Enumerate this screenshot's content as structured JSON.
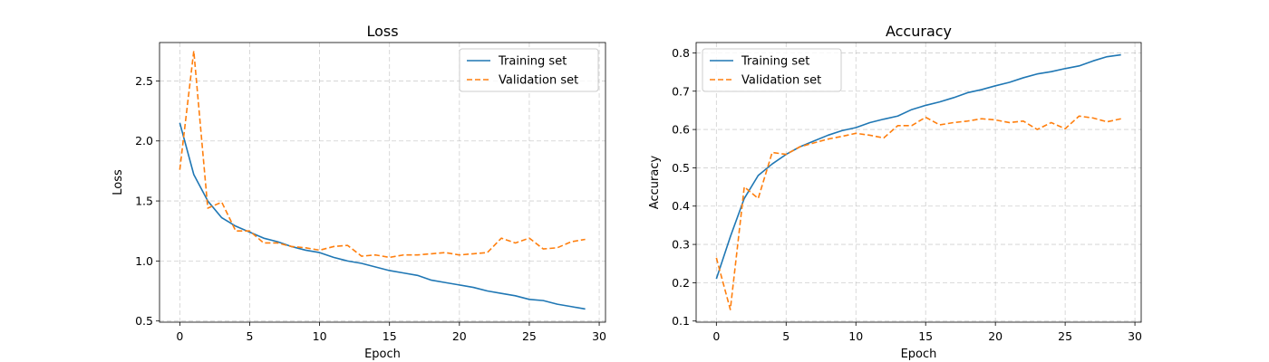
{
  "chart_data": [
    {
      "type": "line",
      "title": "Loss",
      "xlabel": "Epoch",
      "ylabel": "Loss",
      "xlim": [
        -1.45,
        30.45
      ],
      "ylim": [
        0.49,
        2.82
      ],
      "xticks": [
        0,
        5,
        10,
        15,
        20,
        25,
        30
      ],
      "yticks": [
        0.5,
        1.0,
        1.5,
        2.0,
        2.5
      ],
      "ytick_decimals": 1,
      "grid": true,
      "legend": "top-right",
      "x": [
        0,
        1,
        2,
        3,
        4,
        5,
        6,
        7,
        8,
        9,
        10,
        11,
        12,
        13,
        14,
        15,
        16,
        17,
        18,
        19,
        20,
        21,
        22,
        23,
        24,
        25,
        26,
        27,
        28,
        29
      ],
      "series": [
        {
          "name": "Training set",
          "color": "#1f77b4",
          "dash": "solid",
          "values": [
            2.15,
            1.72,
            1.5,
            1.36,
            1.29,
            1.24,
            1.19,
            1.16,
            1.12,
            1.09,
            1.07,
            1.03,
            1.0,
            0.98,
            0.95,
            0.92,
            0.9,
            0.88,
            0.84,
            0.82,
            0.8,
            0.78,
            0.75,
            0.73,
            0.71,
            0.68,
            0.67,
            0.64,
            0.62,
            0.6
          ]
        },
        {
          "name": "Validation set",
          "color": "#ff7f0e",
          "dash": "dashed",
          "values": [
            1.76,
            2.75,
            1.44,
            1.49,
            1.25,
            1.25,
            1.15,
            1.15,
            1.12,
            1.11,
            1.09,
            1.12,
            1.13,
            1.04,
            1.05,
            1.03,
            1.05,
            1.05,
            1.06,
            1.07,
            1.05,
            1.06,
            1.07,
            1.19,
            1.15,
            1.19,
            1.1,
            1.11,
            1.16,
            1.18
          ]
        }
      ]
    },
    {
      "type": "line",
      "title": "Accuracy",
      "xlabel": "Epoch",
      "ylabel": "Accuracy",
      "xlim": [
        -1.45,
        30.45
      ],
      "ylim": [
        0.097,
        0.827
      ],
      "xticks": [
        0,
        5,
        10,
        15,
        20,
        25,
        30
      ],
      "yticks": [
        0.1,
        0.2,
        0.3,
        0.4,
        0.5,
        0.6,
        0.7,
        0.8
      ],
      "ytick_decimals": 1,
      "grid": true,
      "legend": "top-left",
      "x": [
        0,
        1,
        2,
        3,
        4,
        5,
        6,
        7,
        8,
        9,
        10,
        11,
        12,
        13,
        14,
        15,
        16,
        17,
        18,
        19,
        20,
        21,
        22,
        23,
        24,
        25,
        26,
        27,
        28,
        29
      ],
      "series": [
        {
          "name": "Training set",
          "color": "#1f77b4",
          "dash": "solid",
          "values": [
            0.21,
            0.32,
            0.42,
            0.48,
            0.51,
            0.535,
            0.555,
            0.57,
            0.585,
            0.597,
            0.605,
            0.618,
            0.627,
            0.635,
            0.652,
            0.663,
            0.672,
            0.683,
            0.696,
            0.704,
            0.714,
            0.723,
            0.735,
            0.745,
            0.751,
            0.759,
            0.766,
            0.779,
            0.79,
            0.795
          ]
        },
        {
          "name": "Validation set",
          "color": "#ff7f0e",
          "dash": "dashed",
          "values": [
            0.265,
            0.13,
            0.45,
            0.42,
            0.54,
            0.535,
            0.555,
            0.565,
            0.575,
            0.582,
            0.59,
            0.585,
            0.578,
            0.61,
            0.61,
            0.632,
            0.612,
            0.618,
            0.622,
            0.628,
            0.625,
            0.618,
            0.622,
            0.6,
            0.618,
            0.602,
            0.635,
            0.63,
            0.62,
            0.628
          ]
        }
      ]
    }
  ]
}
